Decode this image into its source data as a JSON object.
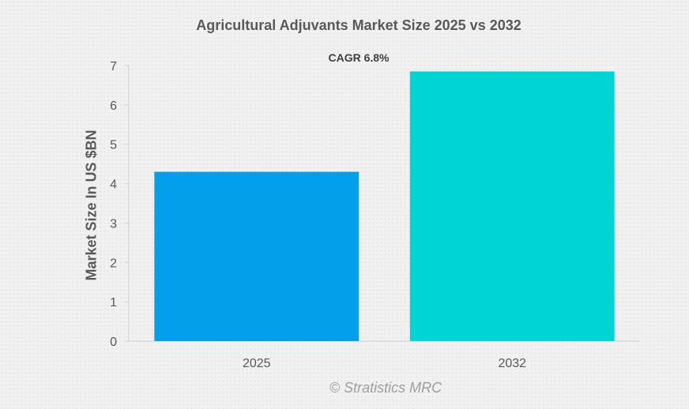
{
  "chart_data": {
    "type": "bar",
    "title": "Agricultural Adjuvants Market Size 2025 vs 2032",
    "annotation": "CAGR 6.8%",
    "xlabel": "",
    "ylabel": "Market Size In US $BN",
    "categories": [
      "2025",
      "2032"
    ],
    "values": [
      4.3,
      6.85
    ],
    "colors": [
      "#039fea",
      "#00d4d4"
    ],
    "ylim": [
      0,
      7
    ],
    "yticks": [
      0,
      1,
      2,
      3,
      4,
      5,
      6,
      7
    ],
    "grid": false,
    "legend": "none"
  },
  "watermark": "© Stratistics MRC"
}
